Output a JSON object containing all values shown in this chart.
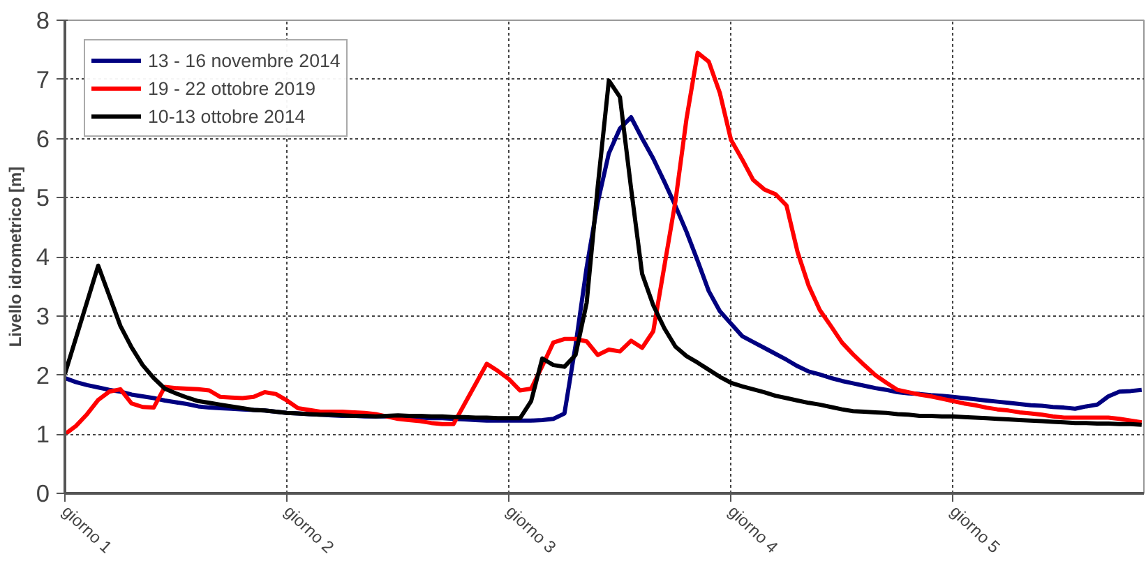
{
  "chart_data": {
    "type": "line",
    "ylabel": "Livello idrometrico [m]",
    "ylim": [
      0,
      8
    ],
    "categories": [
      "giorno 1",
      null,
      null,
      null,
      null,
      null,
      null,
      null,
      null,
      null,
      null,
      null,
      null,
      null,
      null,
      null,
      null,
      null,
      null,
      null,
      "giorno 2",
      null,
      null,
      null,
      null,
      null,
      null,
      null,
      null,
      null,
      null,
      null,
      null,
      null,
      null,
      null,
      null,
      null,
      null,
      null,
      "giorno 3",
      null,
      null,
      null,
      null,
      null,
      null,
      null,
      null,
      null,
      null,
      null,
      null,
      null,
      null,
      null,
      null,
      null,
      null,
      null,
      "giorno 4",
      null,
      null,
      null,
      null,
      null,
      null,
      null,
      null,
      null,
      null,
      null,
      null,
      null,
      null,
      null,
      null,
      null,
      null,
      null,
      "giorno 5",
      null,
      null,
      null,
      null,
      null,
      null,
      null,
      null,
      null,
      null,
      null,
      null,
      null,
      null,
      null,
      null,
      null
    ],
    "yticks": [
      0,
      1,
      2,
      3,
      4,
      5,
      6,
      7,
      8
    ],
    "grid": true,
    "legend": "top left",
    "line_style": "solid",
    "marker": "none",
    "series": [
      {
        "name": "13 - 16 novembre 2014",
        "color": "#000080",
        "values": [
          1.95,
          1.88,
          1.83,
          1.79,
          1.75,
          1.72,
          1.67,
          1.64,
          1.61,
          1.57,
          1.54,
          1.51,
          1.47,
          1.45,
          1.44,
          1.43,
          1.42,
          1.41,
          1.4,
          1.38,
          1.36,
          1.35,
          1.34,
          1.33,
          1.32,
          1.31,
          1.31,
          1.3,
          1.3,
          1.3,
          1.3,
          1.29,
          1.28,
          1.27,
          1.27,
          1.26,
          1.25,
          1.24,
          1.23,
          1.23,
          1.23,
          1.23,
          1.23,
          1.24,
          1.26,
          1.35,
          2.5,
          3.82,
          4.92,
          5.75,
          6.17,
          6.36,
          6.0,
          5.66,
          5.27,
          4.86,
          4.42,
          3.93,
          3.42,
          3.08,
          2.87,
          2.66,
          2.56,
          2.46,
          2.36,
          2.26,
          2.15,
          2.06,
          2.01,
          1.95,
          1.9,
          1.86,
          1.82,
          1.78,
          1.75,
          1.71,
          1.69,
          1.68,
          1.66,
          1.65,
          1.63,
          1.61,
          1.59,
          1.57,
          1.55,
          1.53,
          1.51,
          1.49,
          1.48,
          1.46,
          1.45,
          1.43,
          1.47,
          1.5,
          1.64,
          1.72,
          1.73,
          1.75
        ]
      },
      {
        "name": "19 - 22 ottobre 2019",
        "color": "#ff0000",
        "values": [
          1.0,
          1.14,
          1.34,
          1.58,
          1.72,
          1.76,
          1.52,
          1.46,
          1.45,
          1.8,
          1.78,
          1.77,
          1.76,
          1.74,
          1.63,
          1.62,
          1.61,
          1.63,
          1.71,
          1.68,
          1.57,
          1.44,
          1.41,
          1.38,
          1.38,
          1.38,
          1.37,
          1.36,
          1.34,
          1.3,
          1.26,
          1.24,
          1.22,
          1.19,
          1.17,
          1.17,
          1.51,
          1.85,
          2.19,
          2.07,
          1.93,
          1.74,
          1.77,
          2.15,
          2.55,
          2.61,
          2.61,
          2.57,
          2.34,
          2.43,
          2.4,
          2.58,
          2.46,
          2.74,
          3.84,
          4.94,
          6.34,
          7.45,
          7.3,
          6.77,
          5.98,
          5.65,
          5.3,
          5.14,
          5.06,
          4.87,
          4.08,
          3.51,
          3.1,
          2.83,
          2.55,
          2.35,
          2.17,
          2.0,
          1.87,
          1.75,
          1.71,
          1.67,
          1.64,
          1.6,
          1.56,
          1.52,
          1.49,
          1.45,
          1.42,
          1.4,
          1.37,
          1.35,
          1.33,
          1.3,
          1.28,
          1.28,
          1.28,
          1.28,
          1.28,
          1.26,
          1.23,
          1.2
        ]
      },
      {
        "name": "10-13 ottobre 2014",
        "color": "#000000",
        "values": [
          2.02,
          2.63,
          3.24,
          3.85,
          3.34,
          2.83,
          2.47,
          2.17,
          1.95,
          1.77,
          1.69,
          1.62,
          1.56,
          1.53,
          1.5,
          1.47,
          1.44,
          1.41,
          1.4,
          1.38,
          1.36,
          1.35,
          1.34,
          1.33,
          1.33,
          1.32,
          1.31,
          1.31,
          1.3,
          1.31,
          1.32,
          1.31,
          1.31,
          1.3,
          1.3,
          1.29,
          1.29,
          1.28,
          1.28,
          1.27,
          1.27,
          1.27,
          1.56,
          2.28,
          2.17,
          2.14,
          2.34,
          3.22,
          5.19,
          6.98,
          6.7,
          5.16,
          3.71,
          3.18,
          2.79,
          2.48,
          2.32,
          2.21,
          2.09,
          1.97,
          1.87,
          1.81,
          1.76,
          1.71,
          1.65,
          1.61,
          1.57,
          1.53,
          1.5,
          1.46,
          1.42,
          1.39,
          1.38,
          1.37,
          1.36,
          1.34,
          1.33,
          1.31,
          1.31,
          1.3,
          1.3,
          1.29,
          1.28,
          1.27,
          1.26,
          1.25,
          1.24,
          1.23,
          1.22,
          1.21,
          1.2,
          1.19,
          1.19,
          1.18,
          1.18,
          1.17,
          1.17,
          1.16
        ]
      }
    ]
  }
}
